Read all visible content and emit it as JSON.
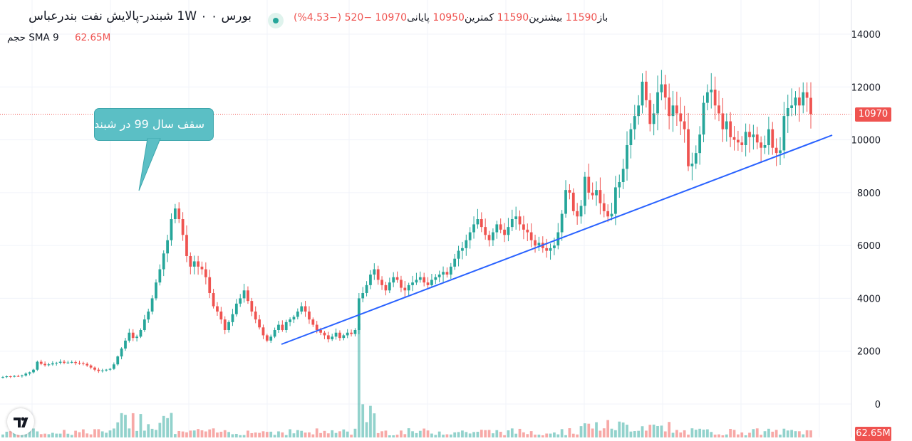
{
  "header": {
    "title": "بورس ۰ 1W ۰ شبندر-پالایش نفت بندرعباس",
    "status_color": "#26a69a",
    "ohlc": [
      {
        "label": "باز",
        "value": "11590"
      },
      {
        "label": "بیشترین",
        "value": "11590"
      },
      {
        "label": "کمترین",
        "value": "10950"
      },
      {
        "label": "پایانی",
        "value": "10970"
      }
    ],
    "change": "−520 (−4.53%)",
    "volume_label": "حجم",
    "volume_sma": "SMA 9",
    "volume_value": "62.65M"
  },
  "price_badge": "10970",
  "volume_badge": "62.65M",
  "annotation": "سقف سال 99 در شبندر",
  "colors": {
    "up": "#26a69a",
    "down": "#ef5350",
    "trendline": "#2962ff",
    "callout": "#5bbfc5"
  },
  "chart_data": {
    "type": "candlestick",
    "interval": "1W",
    "ylim": [
      0,
      14000
    ],
    "yticks": [
      0,
      2000,
      4000,
      6000,
      8000,
      10000,
      12000,
      14000
    ],
    "last_price": 10970,
    "candles_close": [
      1020,
      1050,
      1040,
      1060,
      1050,
      1080,
      1150,
      1200,
      1300,
      1600,
      1520,
      1470,
      1500,
      1540,
      1560,
      1600,
      1560,
      1570,
      1590,
      1550,
      1540,
      1520,
      1460,
      1380,
      1300,
      1250,
      1270,
      1300,
      1330,
      1500,
      1800,
      2100,
      2400,
      2700,
      2500,
      2550,
      2800,
      3200,
      3500,
      4000,
      4600,
      5100,
      5700,
      6200,
      7000,
      7400,
      7000,
      6400,
      5600,
      5200,
      5400,
      5200,
      5100,
      4800,
      4200,
      3700,
      3500,
      3200,
      2800,
      3100,
      3400,
      3800,
      4000,
      4300,
      3900,
      3500,
      3200,
      2900,
      2600,
      2400,
      2550,
      2800,
      3000,
      2800,
      3100,
      3200,
      3300,
      3500,
      3700,
      3500,
      3200,
      3000,
      2800,
      2700,
      2600,
      2450,
      2550,
      2700,
      2500,
      2600,
      2700,
      2650,
      2800,
      4000,
      4200,
      4500,
      4900,
      5100,
      4700,
      4500,
      4300,
      4600,
      4800,
      4700,
      4400,
      4300,
      4500,
      4600,
      4700,
      4800,
      4600,
      4500,
      4700,
      4800,
      4900,
      5000,
      4900,
      5200,
      5500,
      5800,
      5900,
      6200,
      6500,
      6800,
      7000,
      6700,
      6400,
      6200,
      6500,
      6800,
      6600,
      6400,
      6700,
      7000,
      7100,
      6800,
      6600,
      6500,
      6200,
      6000,
      6100,
      5900,
      5800,
      5900,
      6000,
      6500,
      7200,
      8100,
      8000,
      7300,
      7100,
      7500,
      8600,
      8000,
      7900,
      8100,
      7600,
      7300,
      7100,
      7200,
      8200,
      8400,
      8900,
      9800,
      10400,
      10900,
      11300,
      12200,
      11500,
      10600,
      11000,
      11800,
      12100,
      11600,
      10900,
      11300,
      11000,
      10700,
      10400,
      9000,
      9100,
      9500,
      10200,
      11400,
      11800,
      11900,
      11300,
      11000,
      10400,
      10700,
      10100,
      10000,
      9900,
      9800,
      10300,
      10100,
      10200,
      9900,
      9700,
      9800,
      10400,
      9700,
      9500,
      9600,
      10900,
      11200,
      11300,
      11600,
      11300,
      11800,
      11590,
      10970
    ],
    "volume_sma_last": "62.65M"
  }
}
